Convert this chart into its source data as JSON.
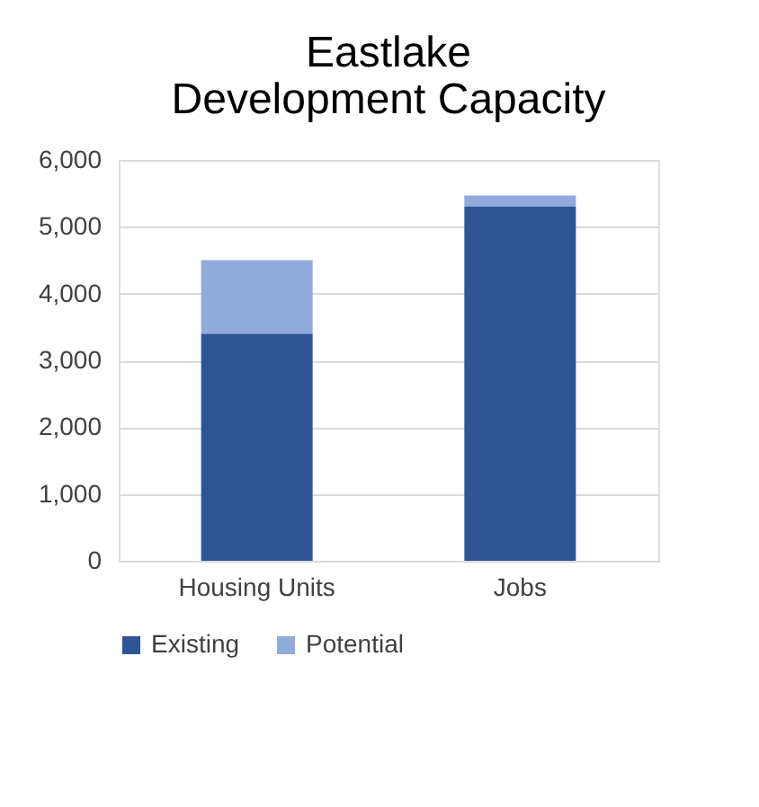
{
  "chart_data": {
    "type": "bar",
    "title": "Eastlake\nDevelopment Capacity",
    "categories": [
      "Housing Units",
      "Jobs"
    ],
    "series": [
      {
        "name": "Existing",
        "color": "#2f5597",
        "values": [
          3400,
          5300
        ]
      },
      {
        "name": "Potential",
        "color": "#8faadc",
        "values": [
          1100,
          170
        ]
      }
    ],
    "stacked": true,
    "ylim": [
      0,
      6000
    ],
    "yticks": [
      0,
      {
        "value": 1000,
        "label": "1,000"
      },
      {
        "value": 2000,
        "label": "2,000"
      },
      {
        "value": 3000,
        "label": "3,000"
      },
      {
        "value": 4000,
        "label": "4,000"
      },
      {
        "value": 5000,
        "label": "5,000"
      },
      {
        "value": 6000,
        "label": "6,000"
      }
    ],
    "grid": "y",
    "legend": "bottom"
  }
}
